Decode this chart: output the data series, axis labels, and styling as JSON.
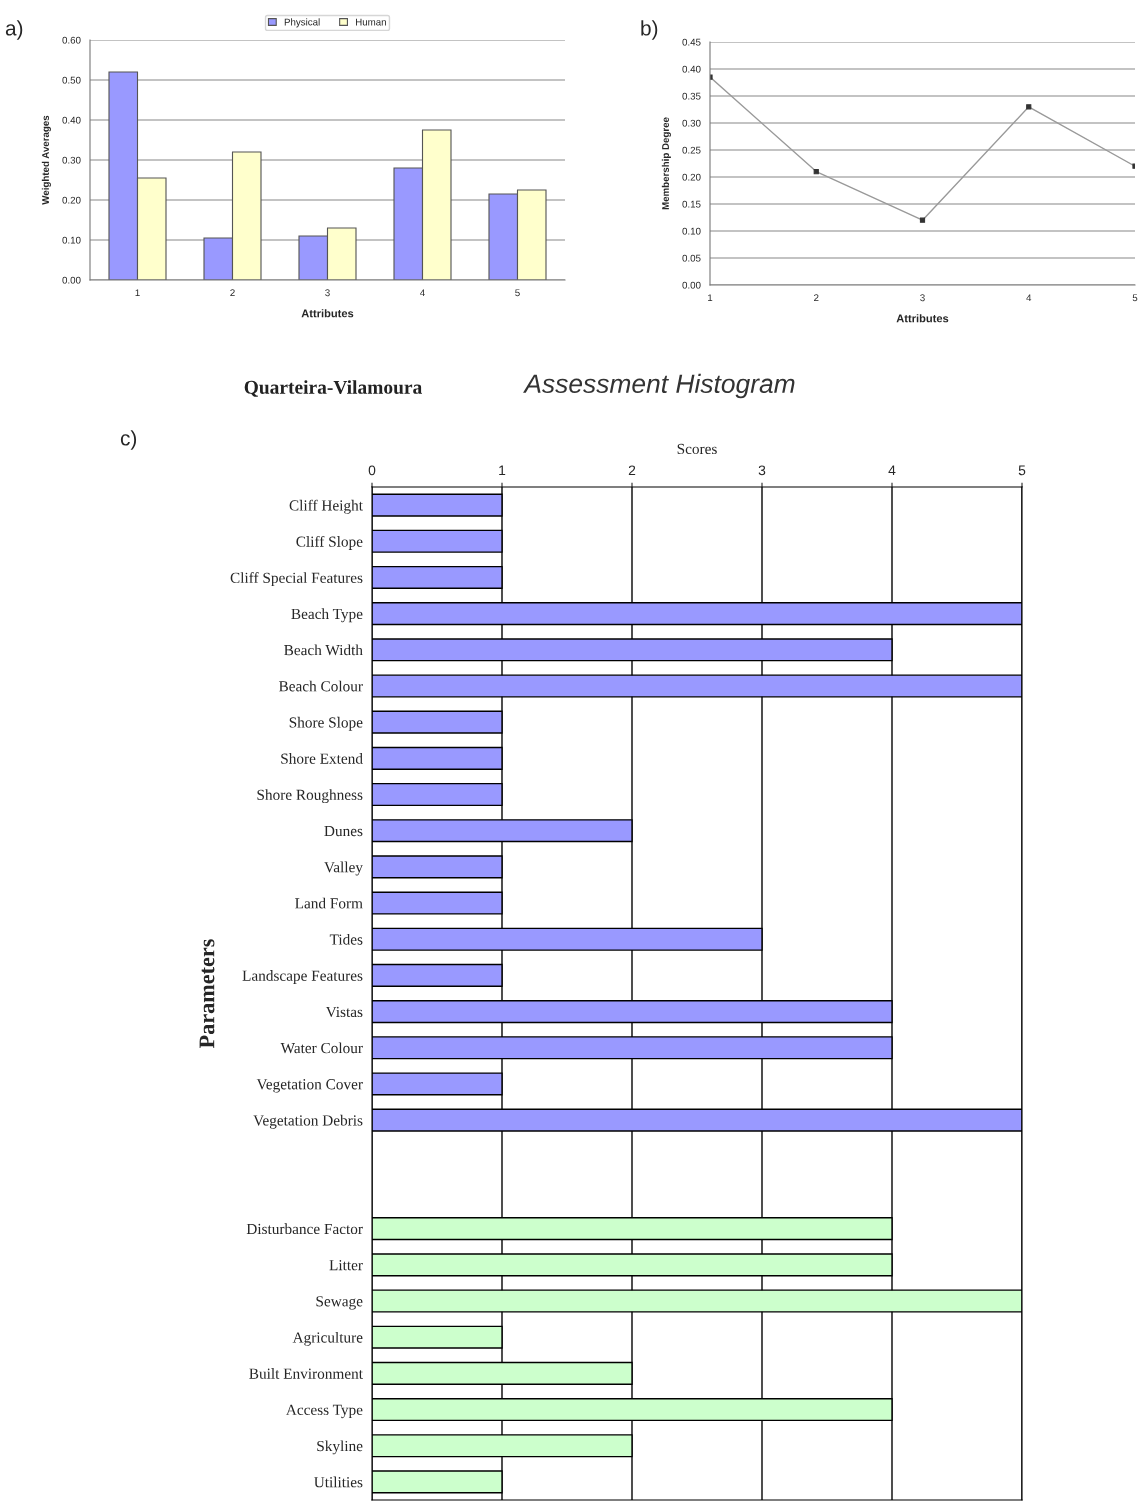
{
  "chart_data": [
    {
      "type": "bar",
      "annotations": [
        "a)"
      ],
      "xlabel": "Attributes",
      "ylabel": "Weighted Averages",
      "categories": [
        "1",
        "2",
        "3",
        "4",
        "5"
      ],
      "series": [
        {
          "name": "Physical",
          "color": "#9999ff",
          "values": [
            0.52,
            0.105,
            0.11,
            0.28,
            0.215
          ]
        },
        {
          "name": "Human",
          "color": "#ffffcc",
          "values": [
            0.255,
            0.32,
            0.13,
            0.375,
            0.225
          ]
        }
      ],
      "ylim": [
        0,
        0.6
      ],
      "yticks": [
        {
          "value": 0,
          "label": "0.00"
        },
        {
          "value": 0.1,
          "label": "0.10"
        },
        {
          "value": 0.2,
          "label": "0.20"
        },
        {
          "value": 0.3,
          "label": "0.30"
        },
        {
          "value": 0.4,
          "label": "0.40"
        },
        {
          "value": 0.5,
          "label": "0.50"
        },
        {
          "value": 0.6,
          "label": "0.60"
        }
      ],
      "grid": "y",
      "legend": "top"
    },
    {
      "type": "line",
      "annotations": [
        "b)"
      ],
      "xlabel": "Attributes",
      "ylabel": "Membership Degree",
      "x": [
        1,
        2,
        3,
        4,
        5
      ],
      "series": [
        {
          "color": "#999999",
          "values": [
            0.385,
            0.21,
            0.12,
            0.33,
            0.22
          ]
        }
      ],
      "xlim": [
        1,
        5
      ],
      "xticks": [
        1,
        2,
        3,
        4,
        5
      ],
      "ylim": [
        0,
        0.45
      ],
      "yticks": [
        {
          "value": 0,
          "label": "0.00"
        },
        {
          "value": 0.05,
          "label": "0.05"
        },
        {
          "value": 0.1,
          "label": "0.10"
        },
        {
          "value": 0.15,
          "label": "0.15"
        },
        {
          "value": 0.2,
          "label": "0.20"
        },
        {
          "value": 0.25,
          "label": "0.25"
        },
        {
          "value": 0.3,
          "label": "0.30"
        },
        {
          "value": 0.35,
          "label": "0.35"
        },
        {
          "value": 0.4,
          "label": "0.40"
        },
        {
          "value": 0.45,
          "label": "0.45"
        }
      ],
      "grid": "y",
      "marker": "square",
      "line_style": "solid"
    },
    {
      "type": "bar",
      "orientation": "horizontal",
      "stacked": true,
      "title": "Assessment Histogram",
      "subtitle": "Quarteira-Vilamoura",
      "annotations": [
        "c)"
      ],
      "xlabel": "Scores",
      "ylabel": "Parameters",
      "categories": [
        "Cliff Height",
        "Cliff Slope",
        "Cliff Special Features",
        "Beach Type",
        "Beach Width",
        "Beach Colour",
        "Shore Slope",
        "Shore Extend",
        "Shore Roughness",
        "Dunes",
        "Valley",
        "Land Form",
        "Tides",
        "Landscape Features",
        "Vistas",
        "Water Colour",
        "Vegetation Cover",
        "Vegetation Debris",
        null,
        null,
        "Disturbance Factor",
        "Litter",
        "Sewage",
        "Agriculture",
        "Built Environment",
        "Access Type",
        "Skyline",
        "Utilities"
      ],
      "series": [
        {
          "color": "#9999ff",
          "values": [
            1,
            1,
            1,
            5,
            4,
            5,
            1,
            1,
            1,
            2,
            1,
            1,
            3,
            1,
            4,
            4,
            1,
            5,
            null,
            null,
            null,
            null,
            null,
            null,
            null,
            null,
            null,
            null
          ]
        },
        {
          "color": "#ccffcc",
          "values": [
            null,
            null,
            null,
            null,
            null,
            null,
            null,
            null,
            null,
            null,
            null,
            null,
            null,
            null,
            null,
            null,
            null,
            null,
            null,
            null,
            4,
            4,
            5,
            1,
            2,
            4,
            2,
            1
          ]
        }
      ],
      "xlim": [
        0,
        5
      ],
      "xticks": [
        0,
        1,
        2,
        3,
        4,
        5
      ],
      "grid": "x"
    }
  ]
}
